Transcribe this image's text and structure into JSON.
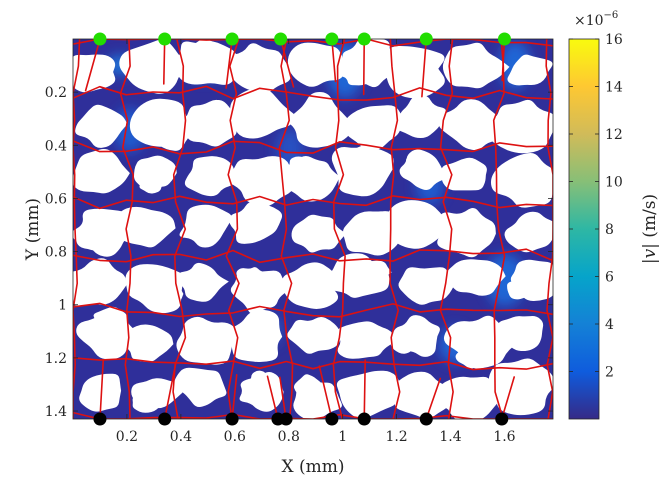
{
  "chart_data": {
    "type": "heatmap",
    "title": "",
    "xlabel": "X (mm)",
    "ylabel": "Y (mm)",
    "xlim": [
      0,
      1.78
    ],
    "ylim": [
      1.43,
      0
    ],
    "y_reversed": true,
    "x_ticks": [
      "0.2",
      "0.4",
      "0.6",
      "0.8",
      "1",
      "1.2",
      "1.4",
      "1.6"
    ],
    "x_tick_values": [
      0.2,
      0.4,
      0.6,
      0.8,
      1.0,
      1.2,
      1.4,
      1.6
    ],
    "y_ticks": [
      "0.2",
      "0.4",
      "0.6",
      "0.8",
      "1",
      "1.2",
      "1.4"
    ],
    "y_tick_values": [
      0.2,
      0.4,
      0.6,
      0.8,
      1.0,
      1.2,
      1.4
    ],
    "colorbar": {
      "label": "|v| (m/s)",
      "label_symbol": "|v|",
      "label_unit": "(m/s)",
      "multiplier": "×10",
      "exponent": "−6",
      "range": [
        0,
        16
      ],
      "ticks": [
        "2",
        "4",
        "6",
        "8",
        "10",
        "12",
        "14",
        "16"
      ],
      "tick_values": [
        2,
        4,
        6,
        8,
        10,
        12,
        14,
        16
      ],
      "colormap": "parula",
      "colors": [
        "#352a87",
        "#0f5cdd",
        "#1481d6",
        "#06a4ca",
        "#2eb7a4",
        "#87bf77",
        "#d1bb59",
        "#fec832",
        "#f9fb0e"
      ]
    },
    "inlet_points": {
      "color": "#22dd00",
      "y": 0.0,
      "x": [
        0.1,
        0.34,
        0.59,
        0.77,
        0.96,
        1.08,
        1.31,
        1.6
      ]
    },
    "outlet_points": {
      "color": "#000000",
      "y": 1.43,
      "x": [
        0.1,
        0.34,
        0.59,
        0.76,
        0.79,
        0.96,
        1.08,
        1.31,
        1.59
      ]
    },
    "flow_paths_color": "#dd1111",
    "grain_color": "#ffffff",
    "pore_color": "#2f2f9a",
    "grid": false
  }
}
